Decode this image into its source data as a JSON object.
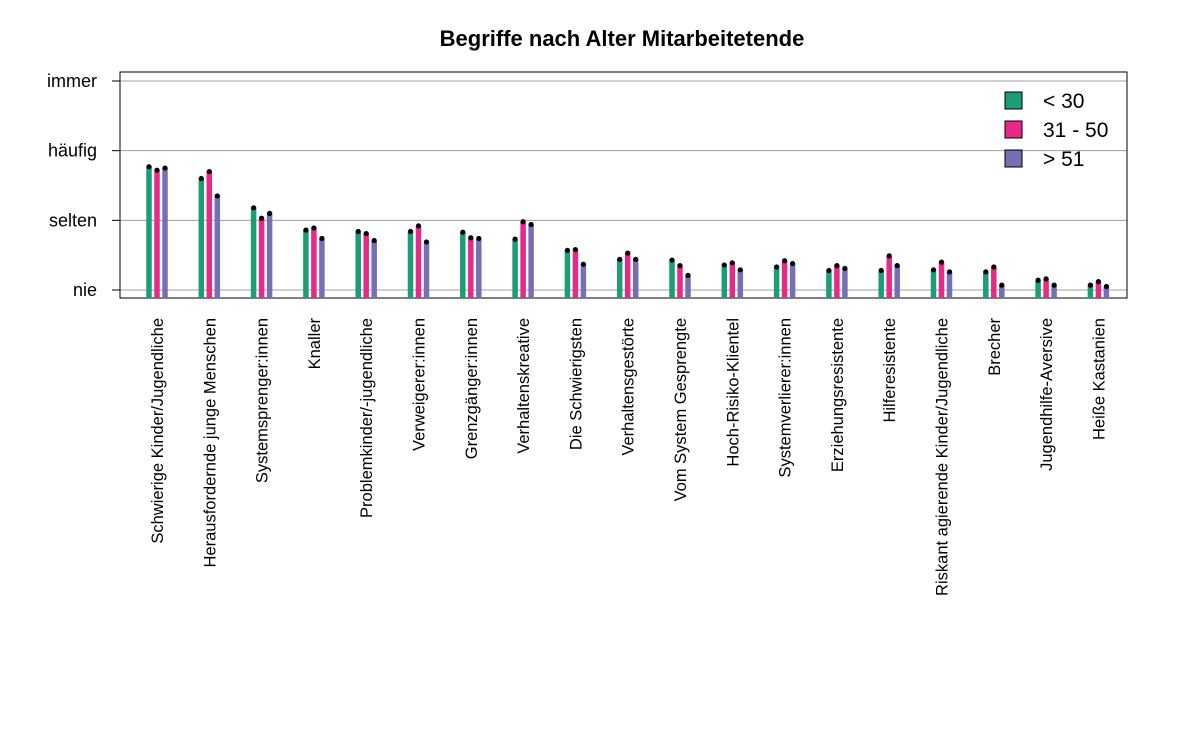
{
  "chart_data": {
    "type": "bar",
    "title": "Begriffe nach Alter Mitarbeitetende",
    "xlabel": "",
    "ylabel": "",
    "ylim": [
      1,
      4
    ],
    "y_tick_values": [
      1,
      2,
      3,
      4
    ],
    "y_tick_labels": [
      "nie",
      "selten",
      "häufig",
      "immer"
    ],
    "grid": true,
    "legend_position": "top-right",
    "categories": [
      "Schwierige Kinder/Jugendliche",
      "Herausfordernde junge Menschen",
      "Systemsprenger:innen",
      "Knaller",
      "Problemkinder/-jugendliche",
      "Verweigerer:innen",
      "Grenzgänger:innen",
      "Verhaltenskreative",
      "Die Schwierigsten",
      "Verhaltensgestörte",
      "Vom System Gesprengte",
      "Hoch-Risiko-Klientel",
      "Systemverlierer:innen",
      "Erziehungsresistente",
      "Hilferesistente",
      "Riskant agierende Kinder/Jugendliche",
      "Brecher",
      "Jugendhilfe-Aversive",
      "Heiße Kastanien"
    ],
    "series": [
      {
        "name": "< 30",
        "color": "#1b9e77",
        "values": [
          2.77,
          2.6,
          2.18,
          1.86,
          1.84,
          1.84,
          1.83,
          1.73,
          1.57,
          1.44,
          1.43,
          1.36,
          1.33,
          1.28,
          1.28,
          1.29,
          1.26,
          1.14,
          1.07
        ]
      },
      {
        "name": "31 - 50",
        "color": "#e7298a",
        "values": [
          2.72,
          2.7,
          2.03,
          1.89,
          1.81,
          1.92,
          1.75,
          1.98,
          1.58,
          1.53,
          1.35,
          1.39,
          1.42,
          1.35,
          1.49,
          1.4,
          1.33,
          1.16,
          1.12
        ]
      },
      {
        "name": "> 51",
        "color": "#7570b3",
        "values": [
          2.75,
          2.35,
          2.1,
          1.74,
          1.71,
          1.69,
          1.74,
          1.94,
          1.37,
          1.44,
          1.21,
          1.29,
          1.38,
          1.31,
          1.35,
          1.26,
          1.07,
          1.07,
          1.05
        ]
      }
    ]
  }
}
